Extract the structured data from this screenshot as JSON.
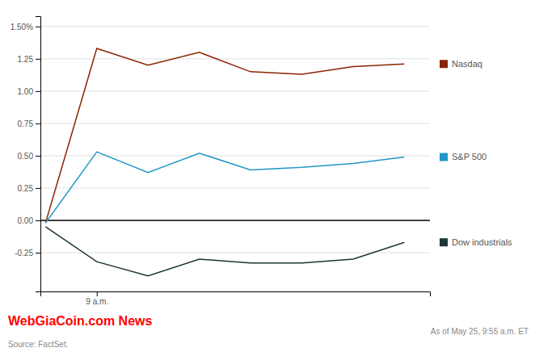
{
  "chart_data": {
    "type": "line",
    "x": [
      0,
      1,
      2,
      3,
      4,
      5,
      6,
      7
    ],
    "series": [
      {
        "name": "Nasdaq",
        "color": "#8B2500",
        "values": [
          -0.02,
          1.33,
          1.2,
          1.3,
          1.15,
          1.13,
          1.19,
          1.21
        ]
      },
      {
        "name": "S&P 500",
        "color": "#2196C8",
        "values": [
          -0.02,
          0.53,
          0.37,
          0.52,
          0.39,
          0.41,
          0.44,
          0.49
        ]
      },
      {
        "name": "Dow industrials",
        "color": "#1C3535",
        "values": [
          -0.05,
          -0.32,
          -0.43,
          -0.3,
          -0.33,
          -0.33,
          -0.3,
          -0.17
        ]
      }
    ],
    "xlim": [
      -0.1,
      7.5
    ],
    "xticks": [
      {
        "value": 1,
        "label": "9 a.m."
      }
    ],
    "ylim": [
      -0.55,
      1.58
    ],
    "yticks": [
      -0.25,
      {
        "value": 0,
        "label": "0.00"
      },
      0.25,
      {
        "value": 0.5,
        "label": "0.50"
      },
      0.75,
      {
        "value": 1,
        "label": "1.00"
      },
      1.25,
      {
        "value": 1.5,
        "label": "1.50%"
      }
    ],
    "grid": "y",
    "legend": "right",
    "annotations": [
      {
        "text": "WebGiaCoin.com News",
        "color": "#FF0000"
      },
      {
        "text": "As of May 25, 9:55 a.m. ET"
      },
      {
        "text": "Source: FactSet."
      }
    ]
  }
}
